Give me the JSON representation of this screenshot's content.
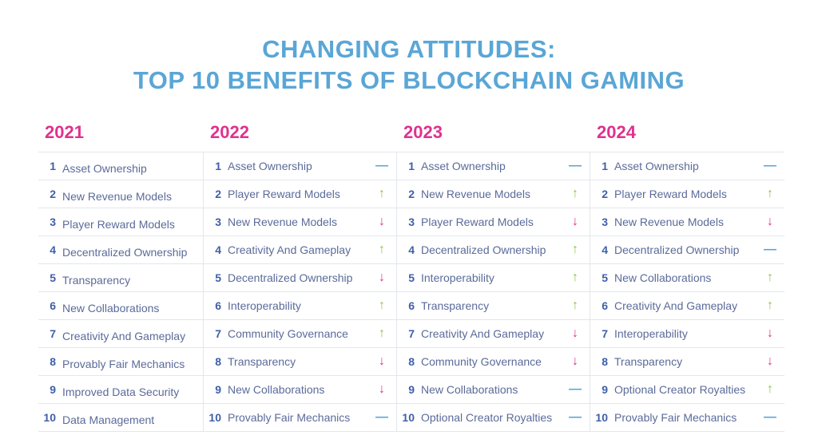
{
  "title_line1": "CHANGING ATTITUDES:",
  "title_line2": "TOP 10 BENEFITS OF BLOCKCHAIN GAMING",
  "colors": {
    "title": "#5aa6d6",
    "year": "#e0318f",
    "up": "#8cc63f",
    "down": "#e0318f",
    "same": "#5aa6d6"
  },
  "columns": [
    {
      "year": "2021",
      "items": [
        {
          "rank": "1",
          "label": "Asset Ownership"
        },
        {
          "rank": "2",
          "label": "New Revenue Models"
        },
        {
          "rank": "3",
          "label": "Player Reward Models"
        },
        {
          "rank": "4",
          "label": "Decentralized Ownership"
        },
        {
          "rank": "5",
          "label": "Transparency"
        },
        {
          "rank": "6",
          "label": "New Collaborations"
        },
        {
          "rank": "7",
          "label": "Creativity And Gameplay"
        },
        {
          "rank": "8",
          "label": "Provably Fair Mechanics"
        },
        {
          "rank": "9",
          "label": "Improved Data Security"
        },
        {
          "rank": "10",
          "label": "Data Management"
        }
      ]
    },
    {
      "year": "2022",
      "items": [
        {
          "rank": "1",
          "label": "Asset Ownership",
          "trend": "same"
        },
        {
          "rank": "2",
          "label": "Player Reward Models",
          "trend": "up"
        },
        {
          "rank": "3",
          "label": "New Revenue Models",
          "trend": "down"
        },
        {
          "rank": "4",
          "label": "Creativity And Gameplay",
          "trend": "up"
        },
        {
          "rank": "5",
          "label": "Decentralized Ownership",
          "trend": "down"
        },
        {
          "rank": "6",
          "label": "Interoperability",
          "trend": "up"
        },
        {
          "rank": "7",
          "label": "Community Governance",
          "trend": "up"
        },
        {
          "rank": "8",
          "label": "Transparency",
          "trend": "down"
        },
        {
          "rank": "9",
          "label": "New Collaborations",
          "trend": "down"
        },
        {
          "rank": "10",
          "label": "Provably Fair Mechanics",
          "trend": "same"
        }
      ]
    },
    {
      "year": "2023",
      "items": [
        {
          "rank": "1",
          "label": "Asset Ownership",
          "trend": "same"
        },
        {
          "rank": "2",
          "label": "New Revenue Models",
          "trend": "up"
        },
        {
          "rank": "3",
          "label": "Player Reward Models",
          "trend": "down"
        },
        {
          "rank": "4",
          "label": "Decentralized Ownership",
          "trend": "up"
        },
        {
          "rank": "5",
          "label": "Interoperability",
          "trend": "up"
        },
        {
          "rank": "6",
          "label": "Transparency",
          "trend": "up"
        },
        {
          "rank": "7",
          "label": "Creativity And Gameplay",
          "trend": "down"
        },
        {
          "rank": "8",
          "label": "Community Governance",
          "trend": "down"
        },
        {
          "rank": "9",
          "label": "New Collaborations",
          "trend": "same"
        },
        {
          "rank": "10",
          "label": "Optional Creator Royalties",
          "trend": "same"
        }
      ]
    },
    {
      "year": "2024",
      "items": [
        {
          "rank": "1",
          "label": "Asset Ownership",
          "trend": "same"
        },
        {
          "rank": "2",
          "label": "Player Reward Models",
          "trend": "up"
        },
        {
          "rank": "3",
          "label": "New Revenue Models",
          "trend": "down"
        },
        {
          "rank": "4",
          "label": "Decentralized Ownership",
          "trend": "same"
        },
        {
          "rank": "5",
          "label": "New Collaborations",
          "trend": "up"
        },
        {
          "rank": "6",
          "label": "Creativity And Gameplay",
          "trend": "up"
        },
        {
          "rank": "7",
          "label": "Interoperability",
          "trend": "down"
        },
        {
          "rank": "8",
          "label": "Transparency",
          "trend": "down"
        },
        {
          "rank": "9",
          "label": "Optional Creator Royalties",
          "trend": "up"
        },
        {
          "rank": "10",
          "label": "Provably Fair Mechanics",
          "trend": "same"
        }
      ]
    }
  ]
}
